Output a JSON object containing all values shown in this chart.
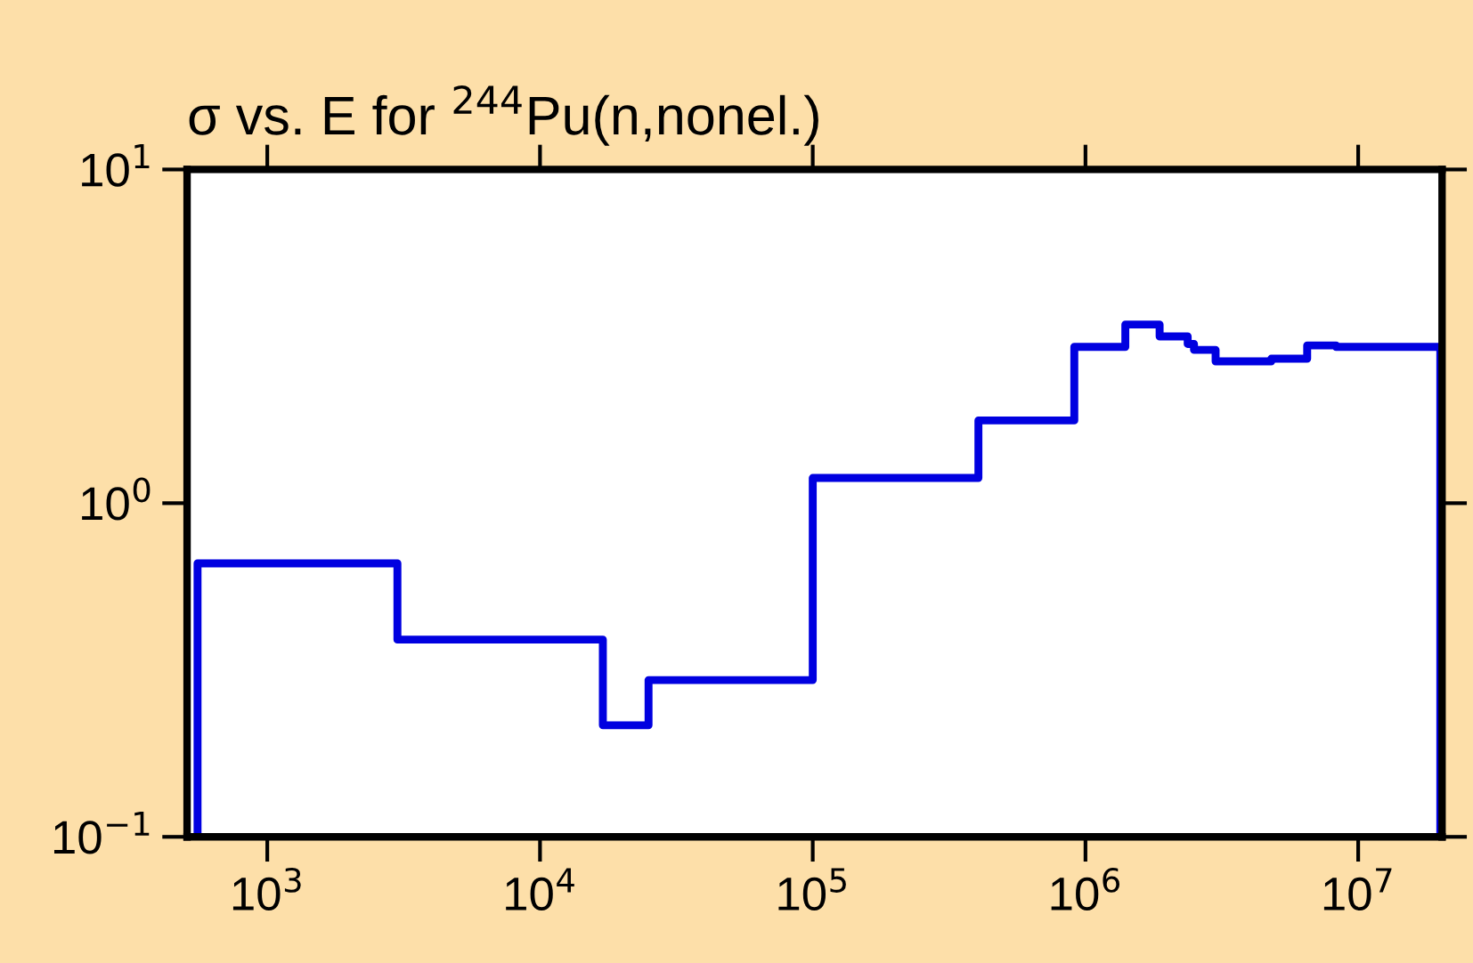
{
  "chart_data": {
    "type": "step",
    "title": "σ vs. E for $^{244}$Pu(n,nonel.)",
    "log": "xy",
    "xlim": [
      508,
      20300000
    ],
    "ylim": [
      0.1,
      10
    ],
    "xticks": [
      {
        "value": 1000,
        "label": "10$^{3}$"
      },
      {
        "value": 10000,
        "label": "10$^{4}$"
      },
      {
        "value": 100000,
        "label": "10$^{5}$"
      },
      {
        "value": 1000000,
        "label": "10$^{6}$"
      },
      {
        "value": 10000000,
        "label": "10$^{7}$"
      }
    ],
    "yticks": [
      {
        "value": 0.1,
        "label": "10$^{−1}$"
      },
      {
        "value": 1,
        "label": "10$^{0}$"
      },
      {
        "value": 10,
        "label": "10$^{1}$"
      }
    ],
    "grid": false,
    "series": [
      {
        "color": "#0000e0",
        "x": [
          555,
          555,
          3000,
          17000,
          25000,
          100000,
          405000,
          910000,
          1400000,
          1870000,
          2370000,
          2500000,
          3000000,
          4800000,
          6500000,
          8300000,
          20000000,
          20000000
        ],
        "values": [
          0.1,
          0.66,
          0.39,
          0.216,
          0.295,
          1.19,
          1.77,
          2.94,
          3.43,
          3.16,
          3.0,
          2.88,
          2.66,
          2.71,
          2.97,
          2.94,
          2.94,
          0.1
        ]
      }
    ]
  }
}
